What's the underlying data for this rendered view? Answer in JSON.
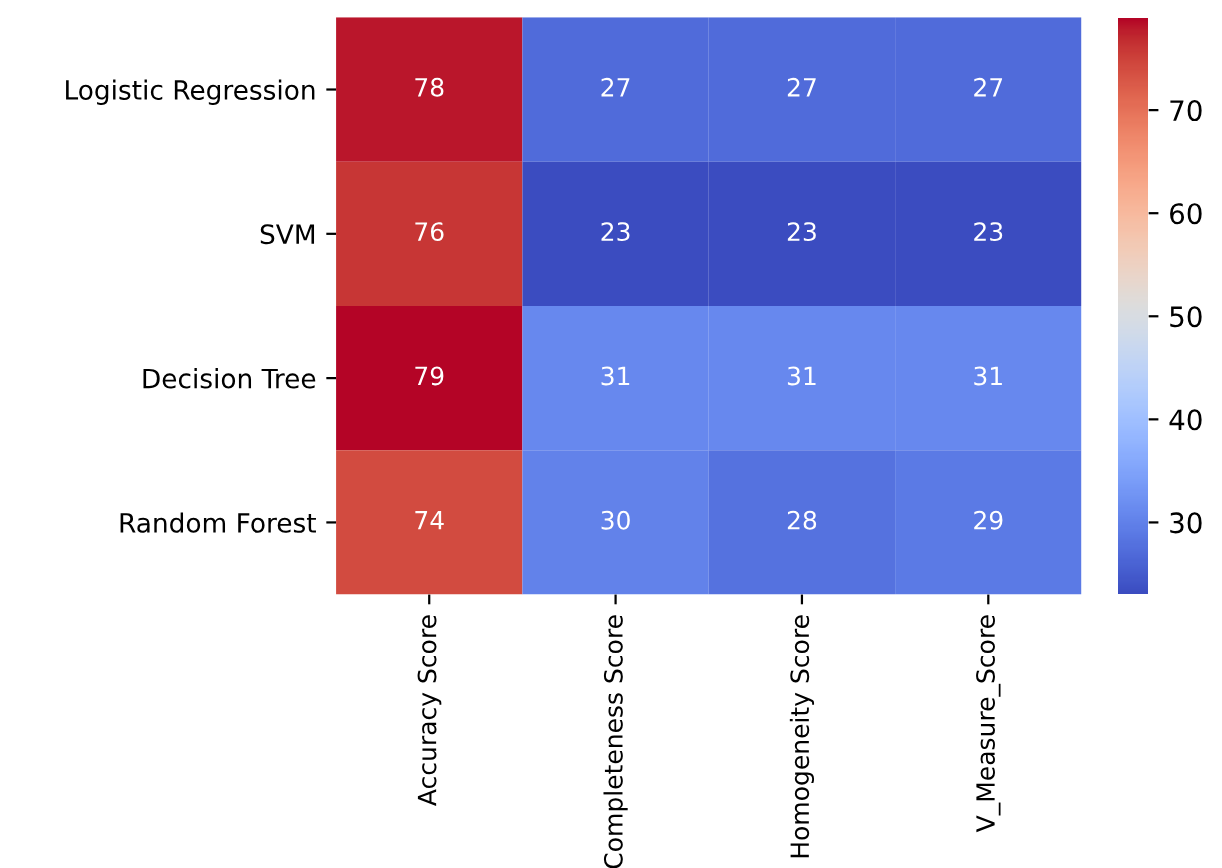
{
  "chart_data": {
    "type": "heatmap",
    "categories": [
      "Accuracy Score",
      "Completeness Score",
      "Homogeneity Score",
      "V_Measure_Score"
    ],
    "y_categories": [
      "Logistic Regression",
      "SVM",
      "Decision Tree",
      "Random Forest"
    ],
    "cells": [
      [
        78,
        27,
        27,
        27
      ],
      [
        76,
        23,
        23,
        23
      ],
      [
        79,
        31,
        31,
        31
      ],
      [
        74,
        30,
        28,
        29
      ]
    ],
    "clim": [
      23,
      79
    ],
    "cticks": [
      30,
      40,
      50,
      60,
      70
    ],
    "data_labels": true
  }
}
